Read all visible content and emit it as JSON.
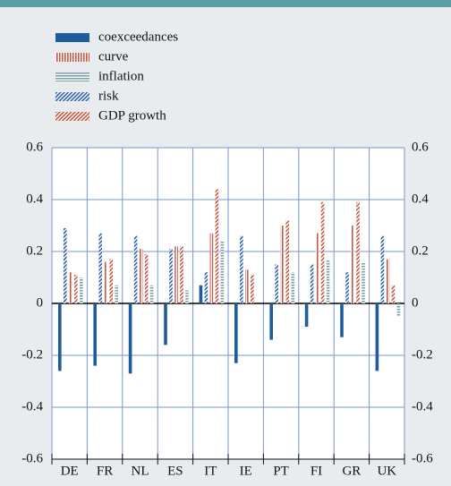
{
  "chart_data": {
    "type": "bar",
    "categories": [
      "DE",
      "FR",
      "NL",
      "ES",
      "IT",
      "IE",
      "PT",
      "FI",
      "GR",
      "UK"
    ],
    "series": [
      {
        "name": "coexceedances",
        "color": "#1f5c9e",
        "hatch": "solid",
        "values": [
          -0.26,
          -0.24,
          -0.27,
          -0.16,
          0.07,
          -0.23,
          -0.14,
          -0.09,
          -0.13,
          -0.26
        ]
      },
      {
        "name": "curve",
        "color": "#c45a45",
        "hatch": "vertical",
        "values": [
          0.12,
          0.16,
          0.21,
          0.22,
          0.27,
          0.13,
          0.3,
          0.27,
          0.3,
          0.17
        ]
      },
      {
        "name": "inflation",
        "color": "#7fa3ad",
        "hatch": "horizontal",
        "values": [
          0.1,
          0.07,
          0.07,
          0.05,
          0.24,
          null,
          0.12,
          0.17,
          0.16,
          -0.05
        ]
      },
      {
        "name": "risk",
        "color": "#2e62ad",
        "hatch": "diagonal",
        "values": [
          0.29,
          0.27,
          0.26,
          0.21,
          0.12,
          0.26,
          0.15,
          0.15,
          0.12,
          0.26
        ]
      },
      {
        "name": "GDP growth",
        "color": "#c45a45",
        "hatch": "diagonal",
        "values": [
          0.11,
          0.17,
          0.19,
          0.22,
          0.44,
          0.11,
          0.32,
          0.39,
          0.39,
          0.07
        ]
      }
    ],
    "ylim": [
      -0.6,
      0.6
    ],
    "yticks": [
      0.6,
      0.4,
      0.2,
      0,
      -0.2,
      -0.4,
      -0.6
    ],
    "grid": true
  }
}
